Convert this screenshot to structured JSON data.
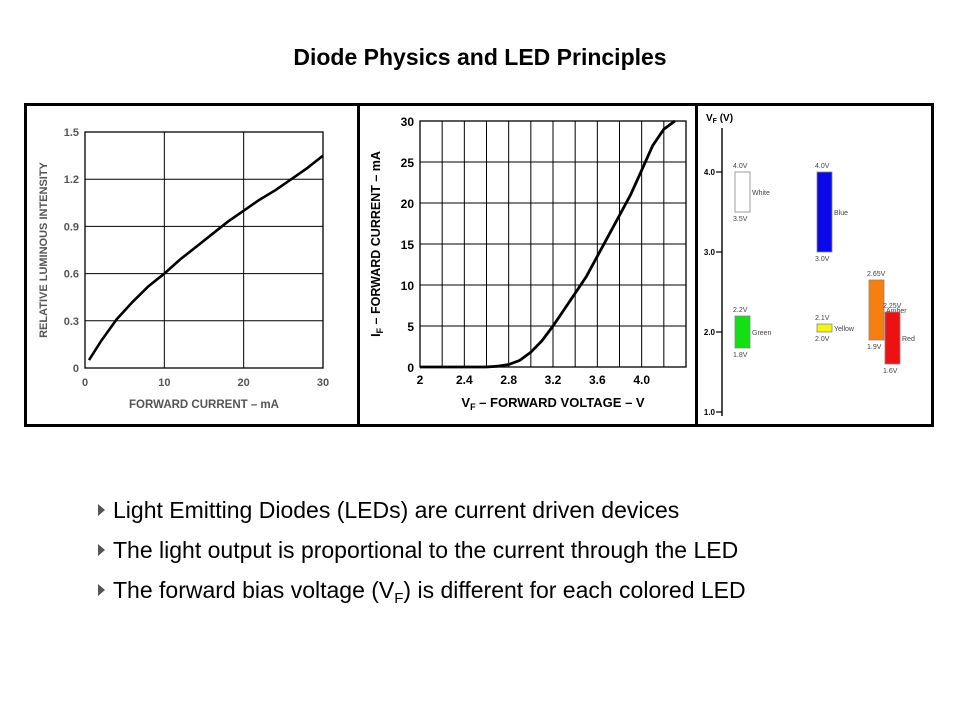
{
  "slide": {
    "title": "Diode Physics and LED Principles",
    "bullets": [
      {
        "text": "Light Emitting Diodes (LEDs) are current driven devices"
      },
      {
        "text": "The light output is proportional to the current through the LED"
      },
      {
        "pre": "The forward bias voltage (V",
        "sub": "F",
        "post": ") is different for each colored LED"
      }
    ]
  },
  "chart_data": [
    {
      "type": "line",
      "title": "",
      "xlabel": "FORWARD CURRENT – mA",
      "ylabel": "RELATIVE LUMINOUS INTENSITY",
      "xlim": [
        0,
        30
      ],
      "ylim": [
        0,
        1.5
      ],
      "xticks": [
        "0",
        "10",
        "20",
        "30"
      ],
      "yticks": [
        "0",
        "0.3",
        "0.6",
        "0.9",
        "1.2",
        "1.5"
      ],
      "grid": true,
      "series": [
        {
          "x": [
            0.5,
            2,
            4,
            6,
            8,
            10,
            12,
            14,
            16,
            18,
            20,
            22,
            24,
            26,
            28,
            30
          ],
          "y": [
            0.05,
            0.17,
            0.31,
            0.42,
            0.52,
            0.6,
            0.69,
            0.77,
            0.85,
            0.93,
            1.0,
            1.07,
            1.13,
            1.2,
            1.27,
            1.35
          ]
        }
      ]
    },
    {
      "type": "line",
      "title": "",
      "xlabel_main": "V",
      "xlabel_sub": "F",
      "xlabel_rest": " – FORWARD VOLTAGE – V",
      "ylabel_main": "I",
      "ylabel_sub": "F",
      "ylabel_rest": " – FORWARD CURRENT – mA",
      "xlim": [
        2,
        4.4
      ],
      "ylim": [
        0,
        30
      ],
      "xticks": [
        "2",
        "2.4",
        "2.8",
        "3.2",
        "3.6",
        "4.0"
      ],
      "yticks": [
        "0",
        "5",
        "10",
        "15",
        "20",
        "25",
        "30"
      ],
      "grid": true,
      "series": [
        {
          "x": [
            2.0,
            2.6,
            2.7,
            2.8,
            2.9,
            3.0,
            3.1,
            3.2,
            3.3,
            3.4,
            3.5,
            3.6,
            3.7,
            3.8,
            3.9,
            4.0,
            4.1,
            4.2,
            4.3
          ],
          "y": [
            0,
            0,
            0.1,
            0.3,
            0.8,
            1.8,
            3.2,
            5.0,
            7.0,
            9.0,
            11.0,
            13.5,
            16.0,
            18.5,
            21.0,
            24.0,
            27.0,
            29.0,
            30.0
          ]
        }
      ]
    },
    {
      "type": "bar",
      "title": "",
      "ylabel_main": "V",
      "ylabel_sub": "F",
      "ylabel_rest": " (V)",
      "ylim": [
        1.0,
        4.7
      ],
      "yticks": [
        "1.0",
        "2.0",
        "3.0",
        "4.0"
      ],
      "series": [
        {
          "name": "White",
          "low": 3.5,
          "high": 4.0,
          "low_label": "3.5V",
          "high_label": "4.0V",
          "color": "#ffffff"
        },
        {
          "name": "Blue",
          "low": 3.0,
          "high": 4.0,
          "low_label": "3.0V",
          "high_label": "4.0V",
          "color": "#0a0ae8"
        },
        {
          "name": "Green",
          "low": 1.8,
          "high": 2.2,
          "low_label": "1.8V",
          "high_label": "2.2V",
          "color": "#12e012"
        },
        {
          "name": "Yellow",
          "low": 2.0,
          "high": 2.1,
          "low_label": "2.0V",
          "high_label": "2.1V",
          "color": "#f4f414"
        },
        {
          "name": "Amber",
          "low": 1.9,
          "high": 2.65,
          "low_label": "1.9V",
          "high_label": "2.65V",
          "color": "#f77f10"
        },
        {
          "name": "Red",
          "low": 1.6,
          "high": 2.25,
          "low_label": "1.6V",
          "high_label": "2.25V",
          "color": "#ee1111"
        }
      ]
    }
  ]
}
